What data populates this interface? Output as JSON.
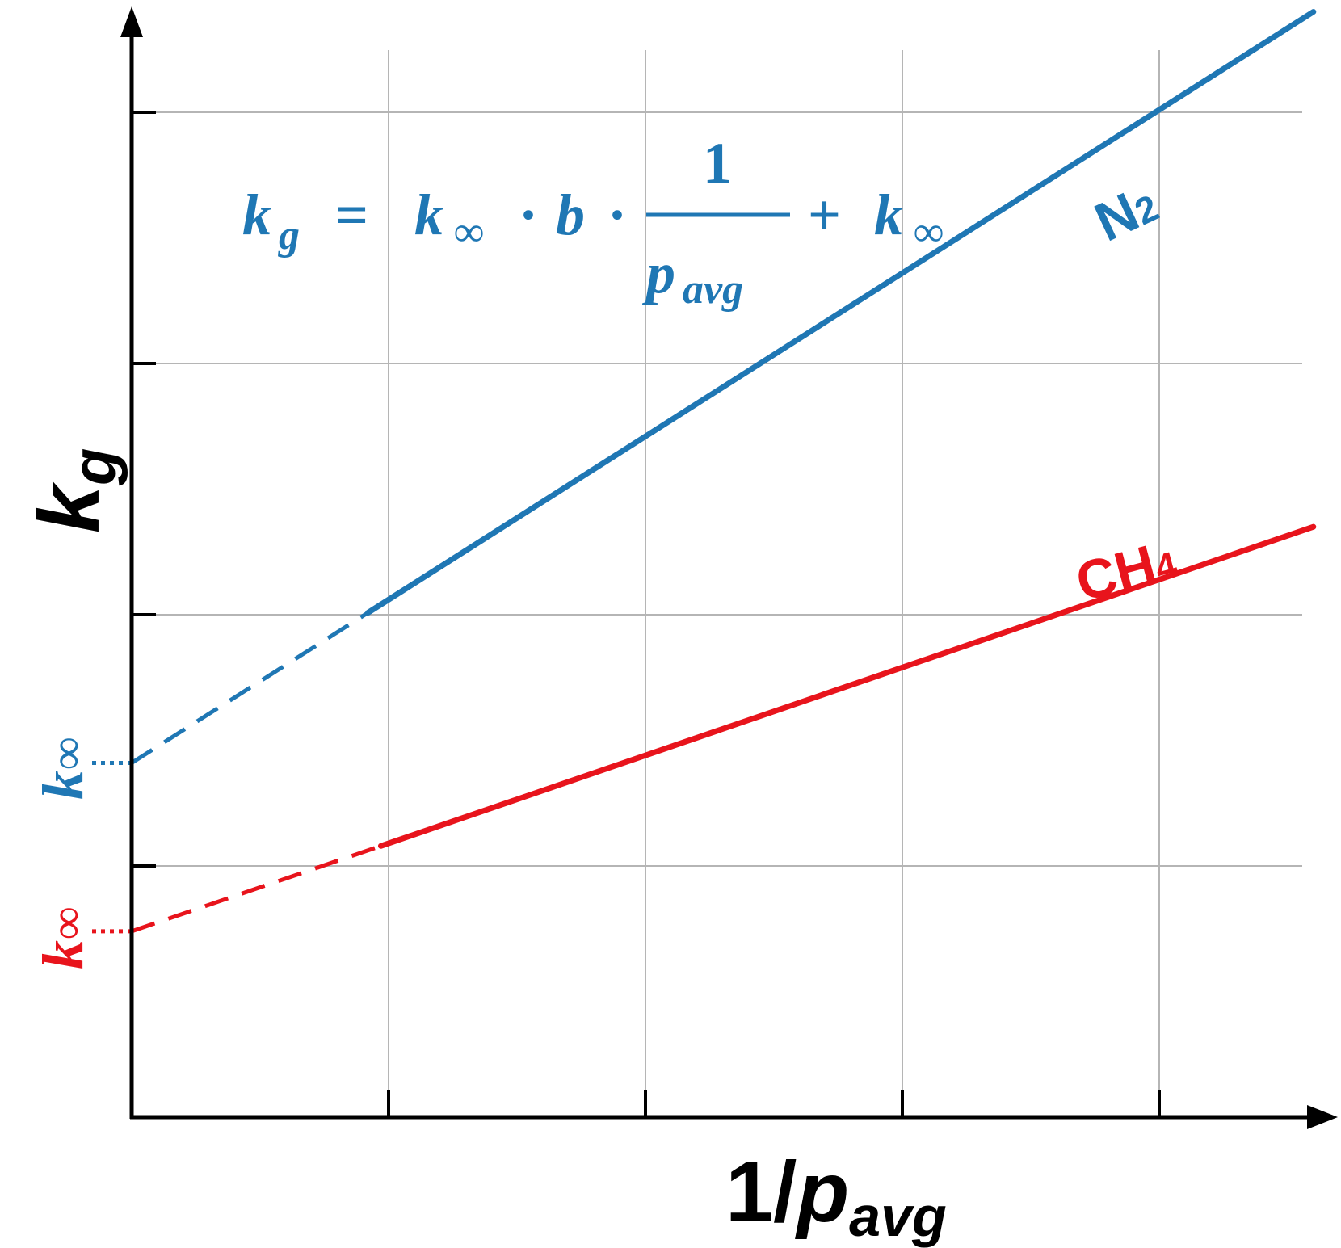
{
  "chart_data": {
    "type": "line",
    "title": "",
    "xlabel": {
      "main": "1/",
      "var": "p",
      "sub": "avg"
    },
    "ylabel": {
      "var": "k",
      "sub": "g"
    },
    "xlim": [
      0,
      4.6
    ],
    "ylim": [
      0,
      4.3
    ],
    "x_grid": [
      1,
      2,
      3,
      4
    ],
    "y_grid": [
      1,
      2,
      3,
      4
    ],
    "x_tick_labels": [],
    "y_tick_labels": [],
    "grid": true,
    "equation": {
      "lhs_var": "k",
      "lhs_sub": "g",
      "eq": "=",
      "k": "k",
      "inf": "∞",
      "dot": "·",
      "b": "b",
      "num": "1",
      "den_var": "p",
      "den_sub": "avg",
      "plus": "+"
    },
    "intercept_label": {
      "var": "k",
      "sub": "∞"
    },
    "series": [
      {
        "name": "N",
        "name_sub": "2",
        "color": "#1f77b4",
        "intercept": 1.41,
        "slope": 0.65,
        "dashed_until": 0.92,
        "x_end": 4.6
      },
      {
        "name": "CH",
        "name_sub": "4",
        "color": "#e8141c",
        "intercept": 0.74,
        "slope": 0.35,
        "dashed_until": 0.97,
        "x_end": 4.6
      }
    ]
  }
}
